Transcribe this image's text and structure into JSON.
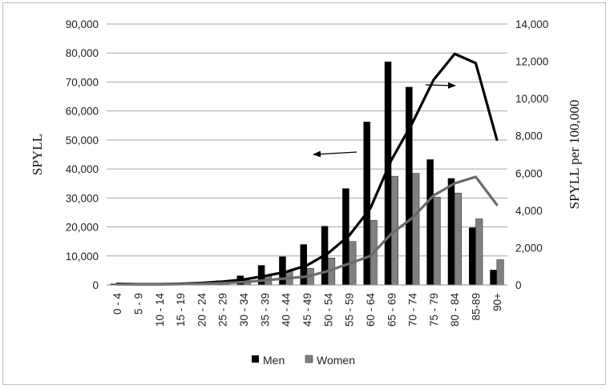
{
  "chart_data": {
    "type": "bar",
    "categories": [
      "0 - 4",
      "5 - 9",
      "10 - 14",
      "15 - 19",
      "20 - 24",
      "25 - 29",
      "30 - 34",
      "35 - 39",
      "40 - 44",
      "45 - 49",
      "50 - 54",
      "55 - 59",
      "60 - 64",
      "65 - 69",
      "70 - 74",
      "75 - 79",
      "80 - 84",
      "85-89",
      "90+"
    ],
    "series": [
      {
        "name": "Men",
        "kind": "bar",
        "axis": "left",
        "color": "#000000",
        "values": [
          400,
          300,
          300,
          500,
          800,
          1500,
          3200,
          6800,
          9800,
          14000,
          20300,
          33300,
          56300,
          77000,
          68300,
          43300,
          36800,
          19800,
          5200
        ]
      },
      {
        "name": "Women",
        "kind": "bar",
        "axis": "left",
        "color": "#808080",
        "values": [
          300,
          200,
          200,
          300,
          500,
          800,
          1500,
          3500,
          4800,
          5700,
          9300,
          15000,
          22300,
          37500,
          38500,
          30300,
          31700,
          22800,
          8700
        ]
      },
      {
        "kind": "line",
        "axis": "right",
        "color": "#000000",
        "values": [
          60,
          40,
          40,
          60,
          110,
          180,
          290,
          480,
          700,
          1050,
          1700,
          2650,
          4100,
          6700,
          8700,
          11000,
          12400,
          11900,
          7800
        ]
      },
      {
        "kind": "line",
        "axis": "right",
        "color": "#6b6b6b",
        "values": [
          30,
          20,
          20,
          40,
          70,
          100,
          150,
          250,
          350,
          450,
          750,
          1150,
          1550,
          2750,
          3600,
          4800,
          5450,
          5800,
          4300
        ]
      }
    ],
    "y_left": {
      "label": "SPYLL",
      "range": [
        0,
        90000
      ],
      "ticks": [
        "0",
        "10,000",
        "20,000",
        "30,000",
        "40,000",
        "50,000",
        "60,000",
        "70,000",
        "80,000",
        "90,000"
      ]
    },
    "y_right": {
      "label": "SPYLL per 100,000",
      "range": [
        0,
        14000
      ],
      "ticks": [
        "0",
        "2,000",
        "4,000",
        "6,000",
        "8,000",
        "10,000",
        "12,000",
        "14,000"
      ]
    },
    "grid": true,
    "legend": {
      "position": "bottom",
      "entries": [
        "Men",
        "Women"
      ]
    },
    "annotations": [
      {
        "type": "arrow",
        "direction": "left",
        "points_to": "left axis"
      },
      {
        "type": "arrow",
        "direction": "right",
        "points_to": "right axis"
      }
    ]
  }
}
